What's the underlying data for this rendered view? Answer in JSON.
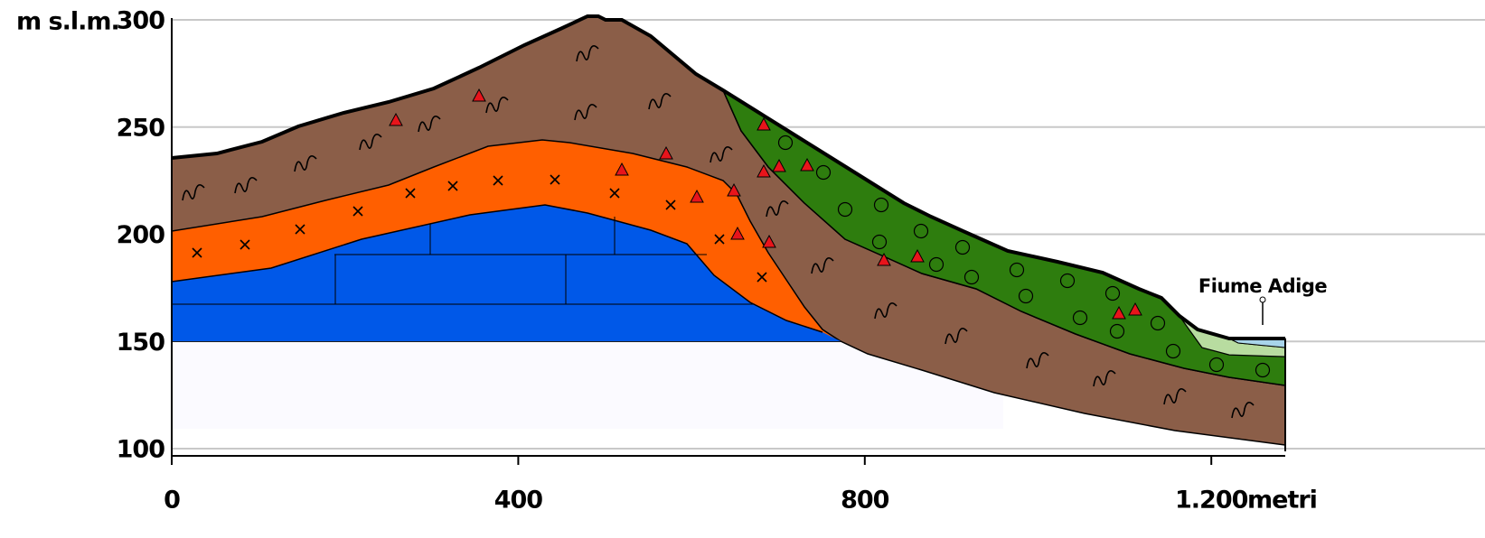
{
  "y_axis": {
    "unit": "m s.l.m.",
    "ticks": [
      100,
      150,
      200,
      250,
      300
    ]
  },
  "x_axis": {
    "unit": "metri",
    "ticks": [
      0,
      400,
      800,
      {
        "value": 1200,
        "label": "1.200"
      }
    ]
  },
  "annotations": [
    "Fiume Adige"
  ]
}
